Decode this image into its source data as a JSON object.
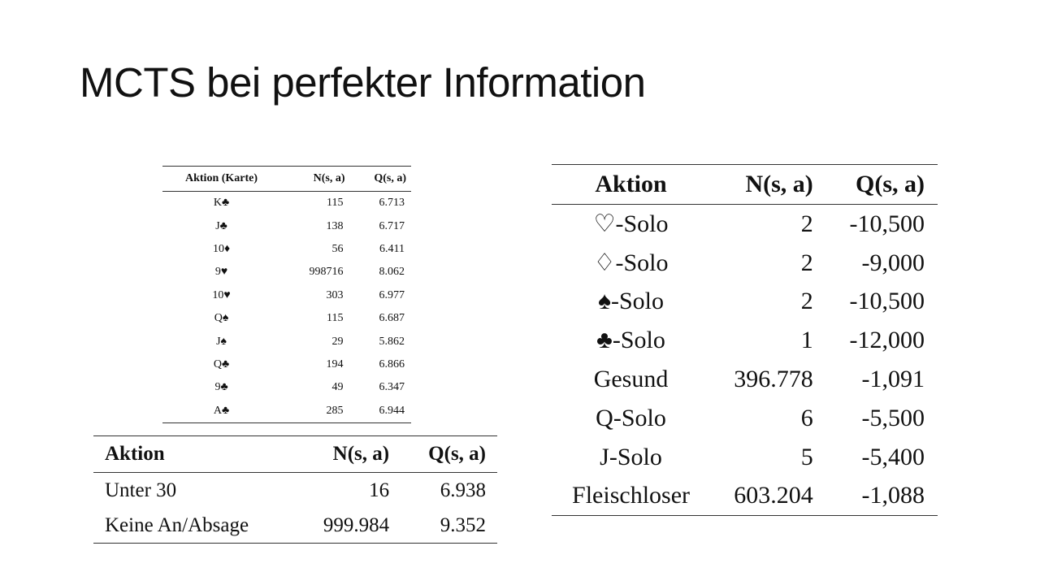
{
  "slide": {
    "title": "MCTS bei perfekter Information"
  },
  "card_table": {
    "headers": [
      "Aktion (Karte)",
      "N(s, a)",
      "Q(s, a)"
    ],
    "rows": [
      [
        "K♣",
        "115",
        "6.713"
      ],
      [
        "J♣",
        "138",
        "6.717"
      ],
      [
        "10♦",
        "56",
        "6.411"
      ],
      [
        "9♥",
        "998716",
        "8.062"
      ],
      [
        "10♥",
        "303",
        "6.977"
      ],
      [
        "Q♠",
        "115",
        "6.687"
      ],
      [
        "J♠",
        "29",
        "5.862"
      ],
      [
        "Q♣",
        "194",
        "6.866"
      ],
      [
        "9♣",
        "49",
        "6.347"
      ],
      [
        "A♣",
        "285",
        "6.944"
      ]
    ]
  },
  "announcement_table": {
    "headers": [
      "Aktion",
      "N(s, a)",
      "Q(s, a)"
    ],
    "rows": [
      [
        "Unter 30",
        "16",
        "6.938"
      ],
      [
        "Keine An/Absage",
        "999.984",
        "9.352"
      ]
    ]
  },
  "gametype_table": {
    "headers": [
      "Aktion",
      "N(s, a)",
      "Q(s, a)"
    ],
    "rows": [
      [
        "♡-Solo",
        "2",
        "-10,500"
      ],
      [
        "♢-Solo",
        "2",
        "-9,000"
      ],
      [
        "♠-Solo",
        "2",
        "-10,500"
      ],
      [
        "♣-Solo",
        "1",
        "-12,000"
      ],
      [
        "Gesund",
        "396.778",
        "-1,091"
      ],
      [
        "Q-Solo",
        "6",
        "-5,500"
      ],
      [
        "J-Solo",
        "5",
        "-5,400"
      ],
      [
        "Fleischloser",
        "603.204",
        "-1,088"
      ]
    ]
  }
}
